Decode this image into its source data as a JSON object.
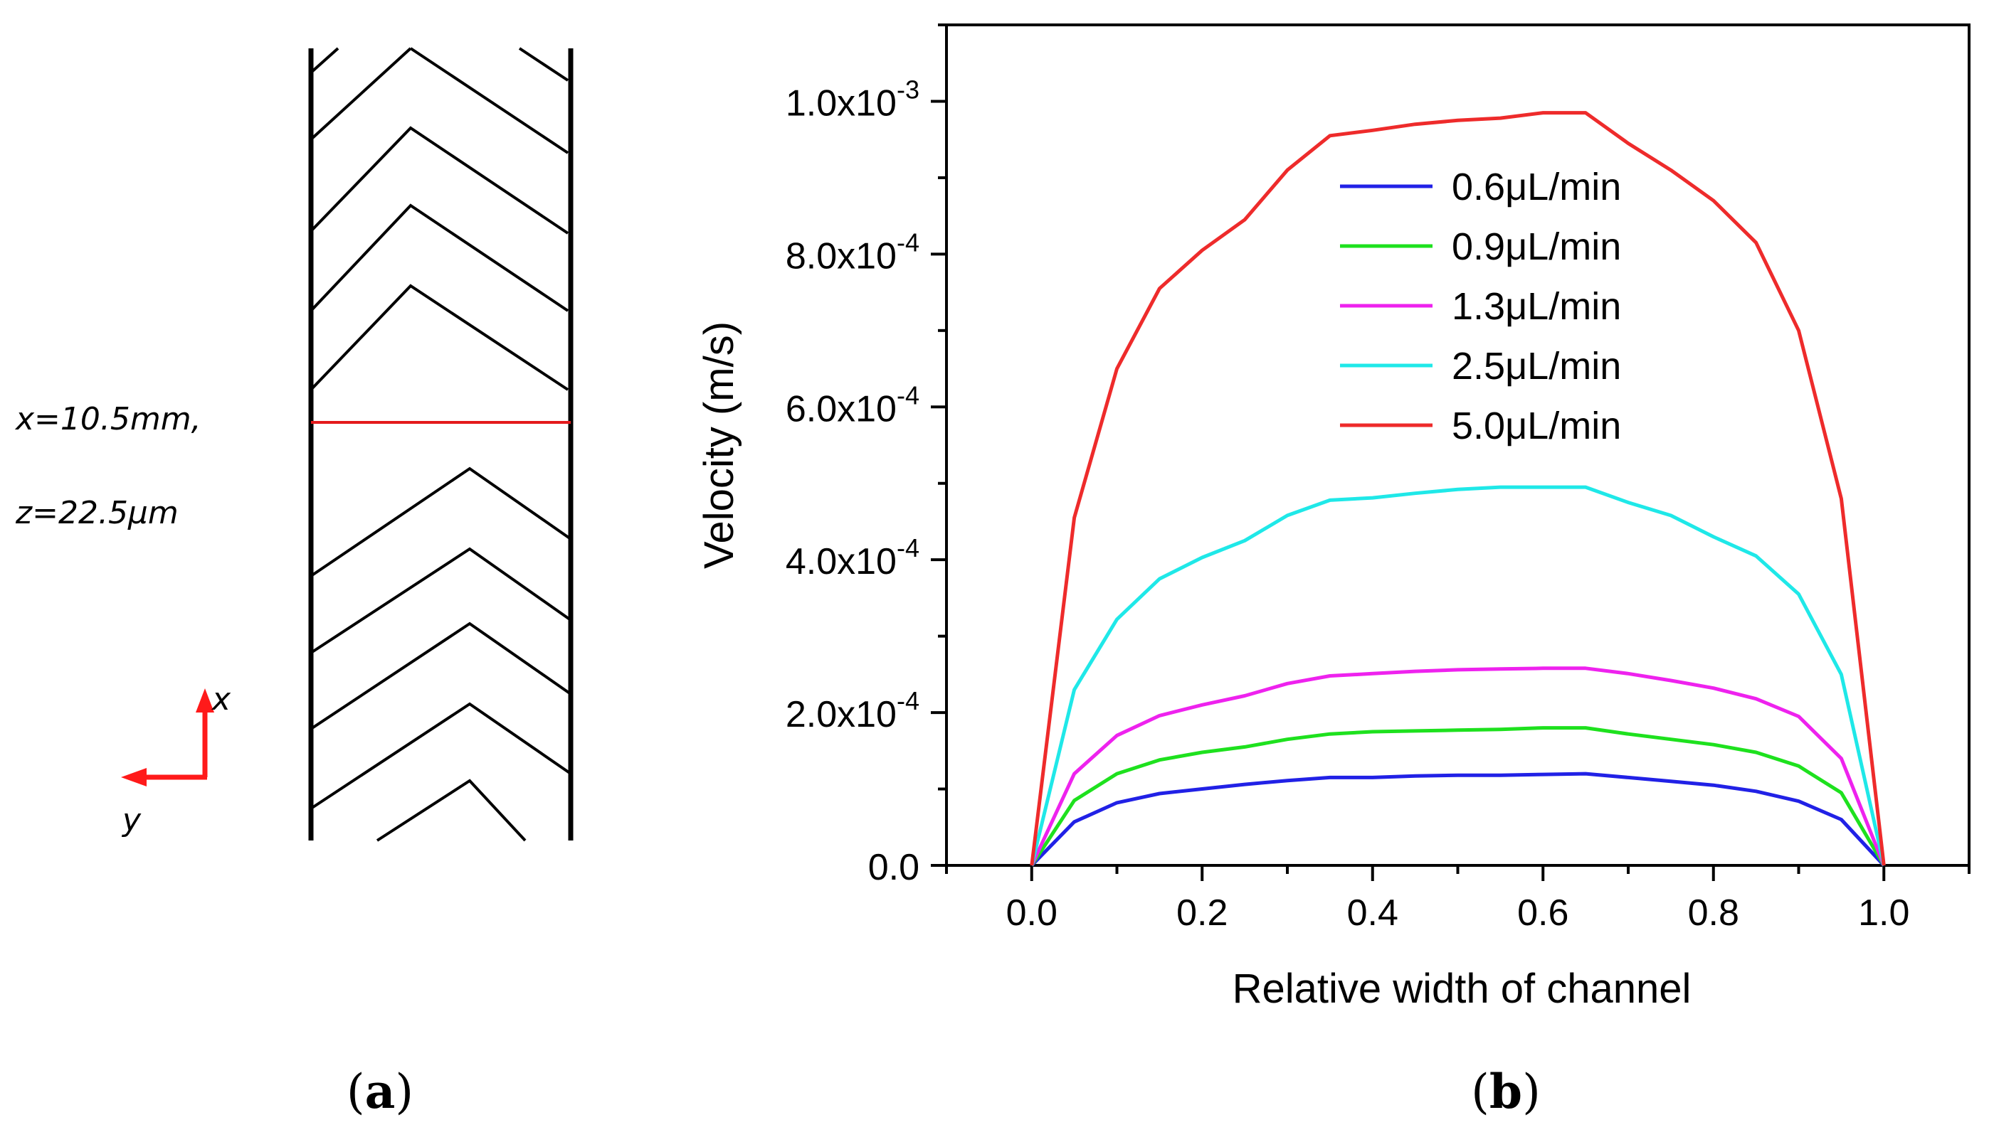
{
  "panels": {
    "a": {
      "label_open": "(",
      "label_letter": "a",
      "label_close": ")",
      "position_line1": "x=10.5mm,",
      "position_line2": "z=22.5μm",
      "axis_x_label": "x",
      "axis_y_label": "y",
      "section_line_color": "#e41a1c",
      "axis_arrow_color": "#ff1a1a"
    },
    "b": {
      "label_open": "(",
      "label_letter": "b",
      "label_close": ")"
    }
  },
  "chart_data": {
    "type": "line",
    "title": "",
    "xlabel": "Relative width of channel",
    "ylabel": "Velocity (m/s)",
    "xlim": [
      -0.1,
      1.1
    ],
    "ylim": [
      0,
      0.0011
    ],
    "xticks": [
      0.0,
      0.2,
      0.4,
      0.6,
      0.8,
      1.0
    ],
    "xtick_labels": [
      "0.0",
      "0.2",
      "0.4",
      "0.6",
      "0.8",
      "1.0"
    ],
    "yticks": [
      {
        "value": 0.0,
        "mantissa": "0.0",
        "exponent": ""
      },
      {
        "value": 0.0002,
        "mantissa": "2.0x10",
        "exponent": "-4"
      },
      {
        "value": 0.0004,
        "mantissa": "4.0x10",
        "exponent": "-4"
      },
      {
        "value": 0.0006,
        "mantissa": "6.0x10",
        "exponent": "-4"
      },
      {
        "value": 0.0008,
        "mantissa": "8.0x10",
        "exponent": "-4"
      },
      {
        "value": 0.001,
        "mantissa": "1.0x10",
        "exponent": "-3"
      }
    ],
    "legend_position": "top-center",
    "x": [
      0.0,
      0.05,
      0.1,
      0.15,
      0.2,
      0.25,
      0.3,
      0.35,
      0.4,
      0.45,
      0.5,
      0.55,
      0.6,
      0.65,
      0.7,
      0.75,
      0.8,
      0.85,
      0.9,
      0.95,
      1.0
    ],
    "series": [
      {
        "name": "0.6μL/min",
        "color": "#2121e6",
        "values": [
          0.0,
          5.7e-05,
          8.2e-05,
          9.4e-05,
          0.0001,
          0.000106,
          0.000111,
          0.000115,
          0.000115,
          0.000117,
          0.000118,
          0.000118,
          0.000119,
          0.00012,
          0.000115,
          0.00011,
          0.000105,
          9.7e-05,
          8.4e-05,
          6e-05,
          0.0
        ]
      },
      {
        "name": "0.9μL/min",
        "color": "#1ee11e",
        "values": [
          0.0,
          8.5e-05,
          0.00012,
          0.000138,
          0.000148,
          0.000155,
          0.000165,
          0.000172,
          0.000175,
          0.000176,
          0.000177,
          0.000178,
          0.00018,
          0.00018,
          0.000172,
          0.000165,
          0.000158,
          0.000148,
          0.00013,
          9.5e-05,
          0.0
        ]
      },
      {
        "name": "1.3μL/min",
        "color": "#ee22ee",
        "values": [
          0.0,
          0.00012,
          0.00017,
          0.000196,
          0.00021,
          0.000222,
          0.000238,
          0.000248,
          0.000251,
          0.000254,
          0.000256,
          0.000257,
          0.000258,
          0.000258,
          0.000251,
          0.000242,
          0.000232,
          0.000218,
          0.000195,
          0.00014,
          0.0
        ]
      },
      {
        "name": "2.5μL/min",
        "color": "#1fe8e8",
        "values": [
          0.0,
          0.00023,
          0.000322,
          0.000375,
          0.000403,
          0.000425,
          0.000458,
          0.000478,
          0.000481,
          0.000487,
          0.000492,
          0.000495,
          0.000495,
          0.000495,
          0.000475,
          0.000458,
          0.00043,
          0.000405,
          0.000355,
          0.00025,
          0.0
        ]
      },
      {
        "name": "5.0μL/min",
        "color": "#ee2b2b",
        "values": [
          0.0,
          0.000455,
          0.00065,
          0.000755,
          0.000805,
          0.000845,
          0.00091,
          0.000955,
          0.000962,
          0.00097,
          0.000975,
          0.000978,
          0.000985,
          0.000985,
          0.000945,
          0.00091,
          0.00087,
          0.000815,
          0.0007,
          0.00048,
          0.0
        ]
      }
    ]
  }
}
